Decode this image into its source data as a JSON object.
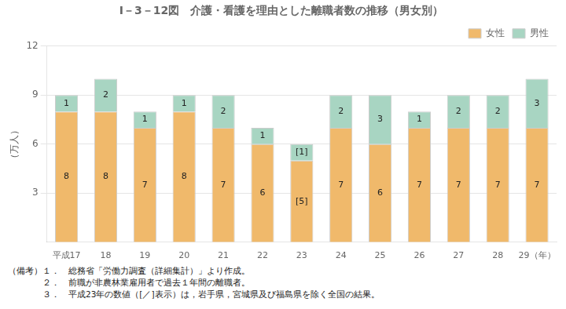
{
  "chart_data": {
    "type": "bar",
    "stacked": true,
    "title": "I－3－12図　介護・看護を理由とした離職者数の推移（男女別）",
    "y_label": "（万人）",
    "categories": [
      "平成17",
      "18",
      "19",
      "20",
      "21",
      "22",
      "23",
      "24",
      "25",
      "26",
      "27",
      "28",
      "29（年）"
    ],
    "series": [
      {
        "name": "女性",
        "color": "#F0B96B",
        "values": [
          8,
          8,
          7,
          8,
          7,
          6,
          5,
          7,
          6,
          7,
          7,
          7,
          7
        ],
        "value_labels": [
          "8",
          "8",
          "7",
          "8",
          "7",
          "6",
          "[5]",
          "7",
          "6",
          "7",
          "7",
          "7",
          "7"
        ]
      },
      {
        "name": "男性",
        "color": "#A8D5C2",
        "values": [
          1,
          2,
          1,
          1,
          2,
          1,
          1,
          2,
          3,
          1,
          2,
          2,
          3
        ],
        "value_labels": [
          "1",
          "2",
          "1",
          "1",
          "2",
          "1",
          "[1]",
          "2",
          "3",
          "1",
          "2",
          "2",
          "3"
        ]
      }
    ],
    "ylim": [
      0,
      12
    ],
    "yticks": [
      3,
      6,
      9,
      12
    ],
    "grid": true,
    "legend": "upper right",
    "data_labels": true,
    "annotations": [
      "（備考）１．　総務省「労働力調査（詳細集計）」より作成。",
      "　　　　２．　前職が非農林業雇用者で過去１年間の離職者。",
      "　　　　３．　平成23年の数値（[／]表示）は，岩手県，宮城県及び福島県を除く全国の結果。"
    ]
  }
}
